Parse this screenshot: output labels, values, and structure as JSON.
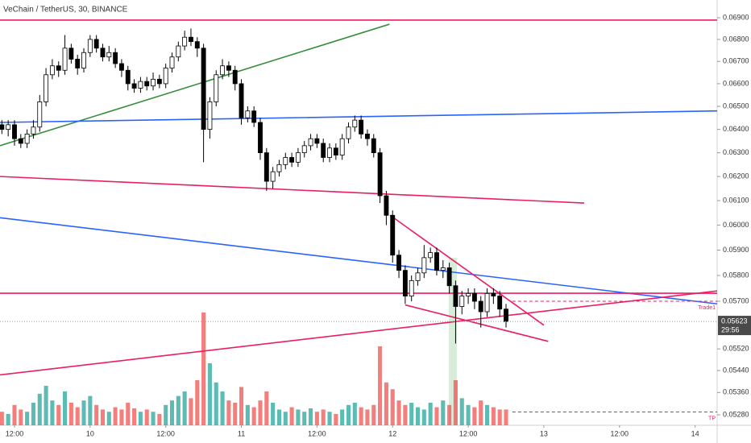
{
  "chart_data": {
    "type": "candlestick",
    "title": "VeChain / TetherUS, 30, BINANCE",
    "log": true,
    "grid": false,
    "xlim": [
      -2.3,
      111.5
    ],
    "ylim": [
      0.05243,
      0.06983
    ],
    "vlim": [
      0,
      100
    ],
    "up_color": "#ffffff",
    "down_color": "#000000",
    "volume_up_color": "#26a69a",
    "volume_down_color": "#ef5350",
    "xticks": [
      {
        "value": 0,
        "label": "12:00"
      },
      {
        "value": 12,
        "label": "10"
      },
      {
        "value": 24,
        "label": "12:00"
      },
      {
        "value": 36,
        "label": "11"
      },
      {
        "value": 48,
        "label": "12:00"
      },
      {
        "value": 60,
        "label": "12"
      },
      {
        "value": 72,
        "label": "12:00"
      },
      {
        "value": 84,
        "label": "13"
      },
      {
        "value": 96,
        "label": "12:00"
      },
      {
        "value": 108,
        "label": "14"
      }
    ],
    "yticks": [
      {
        "value": 0.069,
        "label": "0.06900"
      },
      {
        "value": 0.068,
        "label": "0.06800"
      },
      {
        "value": 0.067,
        "label": "0.06700"
      },
      {
        "value": 0.066,
        "label": "0.06600"
      },
      {
        "value": 0.065,
        "label": "0.06500"
      },
      {
        "value": 0.064,
        "label": "0.06400"
      },
      {
        "value": 0.063,
        "label": "0.06300"
      },
      {
        "value": 0.062,
        "label": "0.06200"
      },
      {
        "value": 0.061,
        "label": "0.06100"
      },
      {
        "value": 0.06,
        "label": "0.06000"
      },
      {
        "value": 0.059,
        "label": "0.05900"
      },
      {
        "value": 0.058,
        "label": "0.05800"
      },
      {
        "value": 0.057,
        "label": "0.05700"
      },
      {
        "value": 0.0552,
        "label": "0.05520"
      },
      {
        "value": 0.0544,
        "label": "0.05440"
      },
      {
        "value": 0.0536,
        "label": "0.05360"
      },
      {
        "value": 0.0528,
        "label": "0.05280"
      }
    ],
    "last_price": {
      "value": 0.05623,
      "label": "0.05623"
    },
    "countdown": "29:56",
    "x": [
      -2,
      -1,
      0,
      1,
      2,
      3,
      4,
      5,
      6,
      7,
      8,
      9,
      10,
      11,
      12,
      13,
      14,
      15,
      16,
      17,
      18,
      19,
      20,
      21,
      22,
      23,
      24,
      25,
      26,
      27,
      28,
      29,
      30,
      31,
      32,
      33,
      34,
      35,
      36,
      37,
      38,
      39,
      40,
      41,
      42,
      43,
      44,
      45,
      46,
      47,
      48,
      49,
      50,
      51,
      52,
      53,
      54,
      55,
      56,
      57,
      58,
      59,
      60,
      61,
      62,
      63,
      64,
      65,
      66,
      67,
      68,
      69,
      70,
      71,
      72,
      73,
      74,
      75,
      76,
      77,
      78
    ],
    "open": [
      0.0642,
      0.064,
      0.0642,
      0.0636,
      0.0634,
      0.0638,
      0.0641,
      0.0652,
      0.0664,
      0.0668,
      0.0666,
      0.0676,
      0.0671,
      0.0667,
      0.0674,
      0.068,
      0.0676,
      0.0672,
      0.0674,
      0.0669,
      0.0666,
      0.066,
      0.0658,
      0.0661,
      0.0659,
      0.0662,
      0.066,
      0.0667,
      0.0672,
      0.0677,
      0.0681,
      0.0679,
      0.0676,
      0.064,
      0.0652,
      0.0664,
      0.0668,
      0.0666,
      0.066,
      0.0645,
      0.0648,
      0.0643,
      0.063,
      0.0618,
      0.0622,
      0.0625,
      0.0628,
      0.0626,
      0.063,
      0.0633,
      0.0636,
      0.0634,
      0.0628,
      0.0632,
      0.0629,
      0.0636,
      0.0641,
      0.0644,
      0.0638,
      0.0636,
      0.063,
      0.0612,
      0.0604,
      0.0588,
      0.0582,
      0.0572,
      0.0578,
      0.0581,
      0.0587,
      0.0589,
      0.0582,
      0.0583,
      0.0576,
      0.0568,
      0.0572,
      0.0573,
      0.057,
      0.0566,
      0.0573,
      0.0572,
      0.0567
    ],
    "high": [
      0.0644,
      0.0644,
      0.0644,
      0.0638,
      0.064,
      0.0644,
      0.0655,
      0.0667,
      0.0671,
      0.067,
      0.0682,
      0.0678,
      0.0673,
      0.0676,
      0.0682,
      0.0682,
      0.0678,
      0.0677,
      0.0676,
      0.0671,
      0.0668,
      0.0662,
      0.0663,
      0.0663,
      0.0665,
      0.0664,
      0.0669,
      0.0674,
      0.0679,
      0.0684,
      0.0685,
      0.0681,
      0.0678,
      0.0654,
      0.0666,
      0.0671,
      0.067,
      0.0668,
      0.0662,
      0.065,
      0.065,
      0.0645,
      0.0632,
      0.0624,
      0.0627,
      0.063,
      0.063,
      0.0632,
      0.0635,
      0.0638,
      0.0638,
      0.0636,
      0.0634,
      0.0634,
      0.0638,
      0.0643,
      0.0646,
      0.0646,
      0.064,
      0.0638,
      0.0632,
      0.0614,
      0.0606,
      0.059,
      0.0584,
      0.058,
      0.0583,
      0.0592,
      0.0591,
      0.0591,
      0.0586,
      0.0585,
      0.0578,
      0.0574,
      0.0575,
      0.0575,
      0.0572,
      0.0575,
      0.0575,
      0.0574,
      0.0569
    ],
    "low": [
      0.0638,
      0.0637,
      0.0633,
      0.0632,
      0.0632,
      0.0636,
      0.0639,
      0.065,
      0.0662,
      0.0663,
      0.0664,
      0.0669,
      0.0664,
      0.0665,
      0.0672,
      0.0674,
      0.067,
      0.067,
      0.0667,
      0.0663,
      0.0657,
      0.0656,
      0.0656,
      0.0657,
      0.0657,
      0.0658,
      0.0658,
      0.0665,
      0.067,
      0.0675,
      0.0677,
      0.0672,
      0.0626,
      0.0636,
      0.065,
      0.0662,
      0.0663,
      0.0657,
      0.0642,
      0.0643,
      0.0641,
      0.0627,
      0.0614,
      0.0615,
      0.062,
      0.0623,
      0.0624,
      0.0624,
      0.0628,
      0.0631,
      0.0632,
      0.0626,
      0.0626,
      0.0627,
      0.0627,
      0.0634,
      0.0639,
      0.0636,
      0.0633,
      0.0628,
      0.0609,
      0.06,
      0.0585,
      0.0579,
      0.0569,
      0.057,
      0.0576,
      0.0579,
      0.0585,
      0.058,
      0.0579,
      0.0573,
      0.0554,
      0.0565,
      0.0569,
      0.0567,
      0.056,
      0.0564,
      0.0569,
      0.0564,
      0.056
    ],
    "close": [
      0.064,
      0.0642,
      0.0636,
      0.0634,
      0.0638,
      0.0641,
      0.0652,
      0.0664,
      0.0668,
      0.0666,
      0.0676,
      0.0671,
      0.0667,
      0.0674,
      0.068,
      0.0676,
      0.0672,
      0.0674,
      0.0669,
      0.0666,
      0.066,
      0.0658,
      0.0661,
      0.0659,
      0.0662,
      0.066,
      0.0667,
      0.0672,
      0.0677,
      0.0681,
      0.0679,
      0.0676,
      0.064,
      0.0652,
      0.0664,
      0.0668,
      0.0666,
      0.066,
      0.0645,
      0.0648,
      0.0643,
      0.063,
      0.0618,
      0.0622,
      0.0625,
      0.0628,
      0.0626,
      0.063,
      0.0633,
      0.0636,
      0.0634,
      0.0628,
      0.0632,
      0.0629,
      0.0636,
      0.0641,
      0.0644,
      0.0638,
      0.0636,
      0.063,
      0.0612,
      0.0604,
      0.0588,
      0.0582,
      0.0572,
      0.0578,
      0.0581,
      0.0587,
      0.0589,
      0.0582,
      0.0583,
      0.0576,
      0.0568,
      0.0572,
      0.0573,
      0.057,
      0.0566,
      0.0573,
      0.0572,
      0.0567,
      0.05623
    ],
    "volume": [
      12,
      10,
      18,
      14,
      12,
      20,
      28,
      35,
      22,
      18,
      30,
      20,
      16,
      22,
      26,
      18,
      14,
      12,
      16,
      14,
      20,
      15,
      12,
      14,
      12,
      10,
      18,
      22,
      26,
      30,
      24,
      40,
      100,
      55,
      38,
      30,
      22,
      20,
      34,
      18,
      16,
      22,
      30,
      20,
      14,
      12,
      16,
      14,
      12,
      15,
      12,
      14,
      12,
      10,
      14,
      18,
      20,
      16,
      14,
      18,
      70,
      38,
      32,
      22,
      18,
      20,
      16,
      14,
      20,
      16,
      22,
      18,
      40,
      24,
      18,
      16,
      22,
      18,
      16,
      14,
      14
    ],
    "drawings": [
      {
        "color": "#e91e63",
        "dash": false,
        "points": [
          [
            -2.3,
            0.06889
          ],
          [
            111.5,
            0.06889
          ]
        ]
      },
      {
        "color": "#388e3c",
        "dash": false,
        "points": [
          [
            -2.3,
            0.0633
          ],
          [
            59.5,
            0.0687
          ]
        ]
      },
      {
        "color": "#2962ff",
        "dash": false,
        "points": [
          [
            -2.3,
            0.0643
          ],
          [
            111.5,
            0.0648
          ]
        ]
      },
      {
        "color": "#e91e63",
        "dash": false,
        "points": [
          [
            -2.3,
            0.062
          ],
          [
            90.4,
            0.0609
          ]
        ]
      },
      {
        "color": "#2962ff",
        "dash": false,
        "points": [
          [
            -2.3,
            0.0603
          ],
          [
            111.5,
            0.0569
          ]
        ]
      },
      {
        "color": "#e91e63",
        "dash": false,
        "points": [
          [
            -2.3,
            0.05731
          ],
          [
            111.5,
            0.05731
          ]
        ]
      },
      {
        "color": "#e91e63",
        "dash": false,
        "points": [
          [
            -2.3,
            0.05424
          ],
          [
            111.5,
            0.0574
          ]
        ]
      },
      {
        "color": "#e91e63",
        "dash": false,
        "points": [
          [
            59.6,
            0.0604
          ],
          [
            84,
            0.05609
          ]
        ]
      },
      {
        "color": "#e91e63",
        "dash": false,
        "points": [
          [
            62,
            0.05686
          ],
          [
            84.7,
            0.05548
          ]
        ]
      },
      {
        "color": "#e91e63",
        "dash": true,
        "label": "Trade1",
        "points": [
          [
            79,
            0.057
          ],
          [
            111.5,
            0.057
          ]
        ]
      },
      {
        "color": "#e91e63",
        "dash": true,
        "label": "TP",
        "points": [
          [
            79,
            0.0529
          ],
          [
            111.5,
            0.0529
          ]
        ]
      }
    ]
  }
}
